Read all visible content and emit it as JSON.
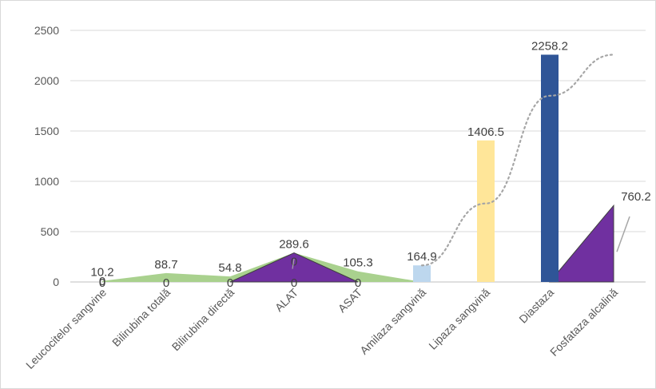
{
  "chart_data": {
    "type": "bar",
    "categories": [
      "Leucocitelor sangvine",
      "Bilirubina totală",
      "Bilirubina directă",
      "ALAT",
      "ASAT",
      "Amilaza sangvină",
      "Lipaza sangvină",
      "Diastaza",
      "Fosfataza alcalină"
    ],
    "ylim": [
      0,
      2500
    ],
    "yticks": [
      0,
      500,
      1000,
      1500,
      2000,
      2500
    ],
    "grid": true,
    "series": [
      {
        "kind": "area",
        "values": [
          10.2,
          88.7,
          54.8,
          289.6,
          105.3,
          0,
          null,
          null,
          null
        ],
        "labels": [
          "10.2",
          "88.7",
          "54.8",
          "289.6",
          "105.3",
          null,
          null,
          null,
          null
        ],
        "color": "#a9d18e"
      },
      {
        "kind": "area",
        "values": [
          null,
          null,
          0,
          289.6,
          0,
          null,
          null,
          0,
          760.2
        ],
        "labels": [
          null,
          null,
          null,
          null,
          null,
          null,
          null,
          null,
          "760.2"
        ],
        "color": "#7030a0"
      },
      {
        "kind": "bar",
        "values": [
          0,
          0,
          0,
          0,
          0,
          164.9,
          1406.5,
          2258.2,
          0
        ],
        "labels": [
          "0",
          "0",
          "0",
          "0",
          "0",
          "164.9",
          "1406.5",
          "2258.2",
          null
        ],
        "colors": [
          "#bdd7ee",
          "#bdd7ee",
          "#bdd7ee",
          "#bdd7ee",
          "#bdd7ee",
          "#bdd7ee",
          "#ffe699",
          "#2f5597",
          "#bdd7ee"
        ]
      },
      {
        "kind": "line",
        "style": "dotted",
        "values": [
          null,
          null,
          null,
          null,
          null,
          164.9,
          780,
          1850,
          2258.2
        ],
        "color": "#a6a6a6"
      }
    ],
    "zero_labels_top": [
      "0",
      "0",
      "0",
      "0",
      "0",
      "0",
      "0",
      "0"
    ]
  }
}
